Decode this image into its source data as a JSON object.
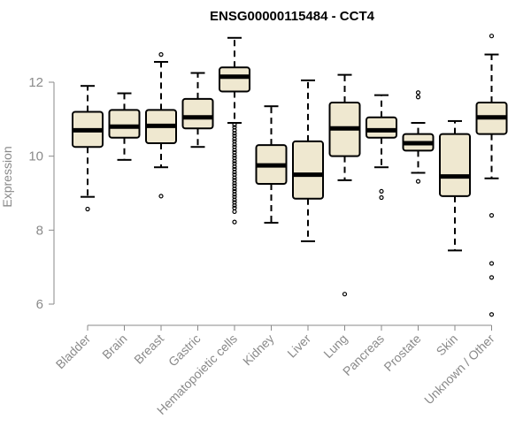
{
  "chart_data": {
    "type": "boxplot",
    "title": "ENSG00000115484 - CCT4",
    "ylabel": "Expression",
    "xlabel": "",
    "ylim": [
      5.5,
      13.5
    ],
    "yticks": [
      "6",
      "8",
      "10",
      "12"
    ],
    "box_fill": "#efe8d0",
    "categories": [
      "Bladder",
      "Brain",
      "Breast",
      "Gastric",
      "Hematopoietic cells",
      "Kidney",
      "Liver",
      "Lung",
      "Pancreas",
      "Prostate",
      "Skin",
      "Unknown / Other"
    ],
    "boxes": [
      {
        "min": 8.9,
        "q1": 10.25,
        "median": 10.7,
        "q3": 11.2,
        "max": 11.9,
        "outliers": [
          8.57
        ]
      },
      {
        "min": 9.9,
        "q1": 10.5,
        "median": 10.8,
        "q3": 11.25,
        "max": 11.7,
        "outliers": []
      },
      {
        "min": 9.7,
        "q1": 10.35,
        "median": 10.82,
        "q3": 11.25,
        "max": 12.55,
        "outliers": [
          12.75,
          8.92
        ]
      },
      {
        "min": 10.25,
        "q1": 10.75,
        "median": 11.05,
        "q3": 11.55,
        "max": 12.25,
        "outliers": []
      },
      {
        "min": 10.9,
        "q1": 11.75,
        "median": 12.15,
        "q3": 12.4,
        "max": 13.2,
        "outliers": [
          10.85,
          10.78,
          10.7,
          10.62,
          10.55,
          10.47,
          10.4,
          10.32,
          10.25,
          10.17,
          10.1,
          10.02,
          9.95,
          9.87,
          9.8,
          9.72,
          9.65,
          9.57,
          9.5,
          9.42,
          9.35,
          9.27,
          9.2,
          9.12,
          9.05,
          8.97,
          8.9,
          8.82,
          8.75,
          8.67,
          8.6,
          8.5,
          8.22
        ]
      },
      {
        "min": 8.2,
        "q1": 9.25,
        "median": 9.75,
        "q3": 10.3,
        "max": 11.35,
        "outliers": []
      },
      {
        "min": 7.7,
        "q1": 8.85,
        "median": 9.5,
        "q3": 10.4,
        "max": 12.05,
        "outliers": []
      },
      {
        "min": 9.35,
        "q1": 10.0,
        "median": 10.75,
        "q3": 11.45,
        "max": 12.2,
        "outliers": [
          6.27
        ]
      },
      {
        "min": 9.7,
        "q1": 10.5,
        "median": 10.7,
        "q3": 11.05,
        "max": 11.65,
        "outliers": [
          9.05,
          8.88
        ]
      },
      {
        "min": 9.55,
        "q1": 10.15,
        "median": 10.35,
        "q3": 10.6,
        "max": 10.9,
        "outliers": [
          11.72,
          11.6,
          9.32
        ]
      },
      {
        "min": 7.45,
        "q1": 8.92,
        "median": 9.45,
        "q3": 10.6,
        "max": 10.95,
        "outliers": []
      },
      {
        "min": 9.4,
        "q1": 10.6,
        "median": 11.05,
        "q3": 11.45,
        "max": 12.75,
        "outliers": [
          13.25,
          8.4,
          7.1,
          6.72,
          5.72
        ]
      }
    ]
  }
}
